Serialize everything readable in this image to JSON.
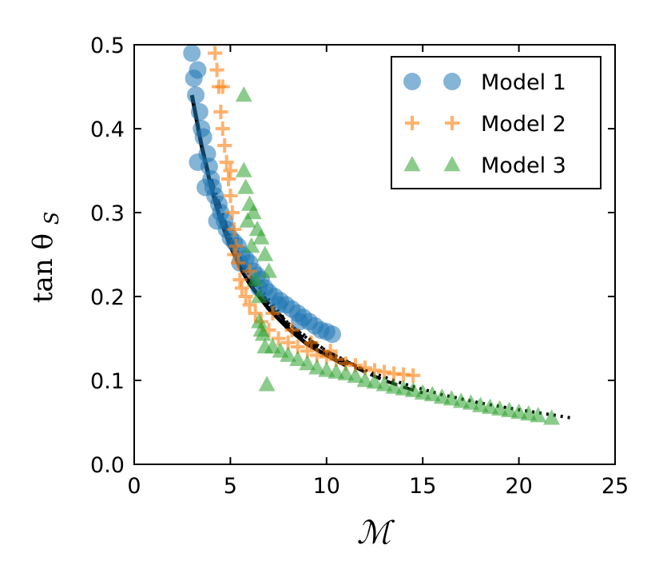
{
  "chart_data": {
    "type": "scatter",
    "title": "",
    "xlabel": "ℳ",
    "ylabel": "tan θ",
    "ylabel_subscript": "S",
    "xlim": [
      0,
      25
    ],
    "ylim": [
      0.0,
      0.5
    ],
    "x_ticks": [
      "0",
      "5",
      "10",
      "15",
      "20",
      "25"
    ],
    "y_ticks": [
      "0.0",
      "0.1",
      "0.2",
      "0.3",
      "0.4",
      "0.5"
    ],
    "x_tick_values": [
      0,
      5,
      10,
      15,
      20,
      25
    ],
    "y_tick_values": [
      0.0,
      0.1,
      0.2,
      0.3,
      0.4,
      0.5
    ],
    "grid": false,
    "legend_position": "top-right",
    "series": [
      {
        "name": "Model 1",
        "marker": "circle",
        "color": "#1f77b4",
        "points": [
          [
            3.0,
            0.49
          ],
          [
            3.1,
            0.46
          ],
          [
            3.2,
            0.44
          ],
          [
            3.3,
            0.47
          ],
          [
            3.4,
            0.42
          ],
          [
            3.5,
            0.4
          ],
          [
            3.6,
            0.39
          ],
          [
            3.8,
            0.37
          ],
          [
            3.9,
            0.355
          ],
          [
            4.0,
            0.34
          ],
          [
            4.1,
            0.33
          ],
          [
            4.2,
            0.32
          ],
          [
            4.4,
            0.31
          ],
          [
            4.5,
            0.3
          ],
          [
            4.7,
            0.29
          ],
          [
            4.8,
            0.28
          ],
          [
            5.0,
            0.27
          ],
          [
            5.2,
            0.265
          ],
          [
            5.4,
            0.26
          ],
          [
            5.6,
            0.25
          ],
          [
            5.8,
            0.245
          ],
          [
            6.0,
            0.24
          ],
          [
            6.2,
            0.23
          ],
          [
            6.4,
            0.225
          ],
          [
            6.6,
            0.22
          ],
          [
            6.8,
            0.21
          ],
          [
            7.0,
            0.205
          ],
          [
            7.3,
            0.2
          ],
          [
            7.6,
            0.195
          ],
          [
            7.9,
            0.19
          ],
          [
            8.2,
            0.185
          ],
          [
            8.5,
            0.18
          ],
          [
            8.8,
            0.175
          ],
          [
            9.1,
            0.17
          ],
          [
            9.4,
            0.165
          ],
          [
            9.7,
            0.16
          ],
          [
            10.0,
            0.158
          ],
          [
            10.3,
            0.155
          ],
          [
            3.3,
            0.36
          ],
          [
            3.7,
            0.33
          ],
          [
            4.3,
            0.29
          ],
          [
            5.5,
            0.24
          ],
          [
            6.5,
            0.21
          ],
          [
            7.5,
            0.19
          ],
          [
            8.6,
            0.17
          ]
        ]
      },
      {
        "name": "Model 2",
        "marker": "plus",
        "color": "#ff7f0e",
        "points": [
          [
            4.2,
            0.49
          ],
          [
            4.3,
            0.47
          ],
          [
            4.4,
            0.45
          ],
          [
            4.5,
            0.42
          ],
          [
            4.6,
            0.4
          ],
          [
            4.7,
            0.38
          ],
          [
            4.8,
            0.36
          ],
          [
            4.9,
            0.34
          ],
          [
            5.0,
            0.32
          ],
          [
            5.1,
            0.3
          ],
          [
            5.2,
            0.28
          ],
          [
            5.3,
            0.26
          ],
          [
            5.4,
            0.24
          ],
          [
            5.5,
            0.22
          ],
          [
            5.6,
            0.21
          ],
          [
            5.8,
            0.2
          ],
          [
            6.0,
            0.19
          ],
          [
            6.3,
            0.18
          ],
          [
            6.6,
            0.17
          ],
          [
            7.0,
            0.16
          ],
          [
            7.5,
            0.15
          ],
          [
            8.0,
            0.145
          ],
          [
            8.5,
            0.14
          ],
          [
            9.0,
            0.135
          ],
          [
            9.5,
            0.13
          ],
          [
            10.0,
            0.128
          ],
          [
            10.5,
            0.125
          ],
          [
            11.0,
            0.12
          ],
          [
            11.5,
            0.118
          ],
          [
            12.0,
            0.115
          ],
          [
            12.5,
            0.112
          ],
          [
            13.0,
            0.11
          ],
          [
            13.5,
            0.108
          ],
          [
            14.0,
            0.107
          ],
          [
            14.5,
            0.106
          ],
          [
            4.6,
            0.45
          ],
          [
            5.0,
            0.35
          ],
          [
            5.2,
            0.25
          ],
          [
            6.0,
            0.23
          ],
          [
            7.2,
            0.18
          ],
          [
            8.2,
            0.16
          ],
          [
            9.2,
            0.145
          ],
          [
            10.2,
            0.135
          ]
        ]
      },
      {
        "name": "Model 3",
        "marker": "triangle",
        "color": "#2ca02c",
        "points": [
          [
            5.7,
            0.44
          ],
          [
            5.7,
            0.35
          ],
          [
            5.8,
            0.33
          ],
          [
            6.0,
            0.31
          ],
          [
            6.2,
            0.3
          ],
          [
            6.4,
            0.28
          ],
          [
            6.6,
            0.27
          ],
          [
            6.8,
            0.25
          ],
          [
            7.0,
            0.23
          ],
          [
            6.9,
            0.095
          ],
          [
            6.8,
            0.14
          ],
          [
            6.5,
            0.17
          ],
          [
            6.6,
            0.16
          ],
          [
            6.7,
            0.155
          ],
          [
            7.2,
            0.14
          ],
          [
            7.6,
            0.135
          ],
          [
            8.0,
            0.13
          ],
          [
            8.5,
            0.125
          ],
          [
            9.0,
            0.12
          ],
          [
            9.5,
            0.115
          ],
          [
            10.0,
            0.112
          ],
          [
            10.5,
            0.11
          ],
          [
            11.0,
            0.108
          ],
          [
            11.5,
            0.105
          ],
          [
            12.0,
            0.1
          ],
          [
            12.5,
            0.098
          ],
          [
            13.0,
            0.095
          ],
          [
            13.5,
            0.092
          ],
          [
            14.0,
            0.09
          ],
          [
            14.5,
            0.088
          ],
          [
            15.0,
            0.085
          ],
          [
            15.5,
            0.083
          ],
          [
            16.0,
            0.08
          ],
          [
            16.5,
            0.078
          ],
          [
            17.0,
            0.075
          ],
          [
            17.5,
            0.073
          ],
          [
            18.0,
            0.07
          ],
          [
            18.5,
            0.068
          ],
          [
            19.0,
            0.066
          ],
          [
            19.5,
            0.064
          ],
          [
            20.0,
            0.062
          ],
          [
            20.5,
            0.06
          ],
          [
            21.0,
            0.058
          ],
          [
            21.7,
            0.055
          ],
          [
            6.3,
            0.22
          ],
          [
            6.5,
            0.2
          ],
          [
            5.9,
            0.29
          ],
          [
            6.1,
            0.26
          ]
        ]
      }
    ],
    "fit_lines": [
      {
        "style": "solid",
        "color": "#000000",
        "points": [
          [
            3.0,
            0.44
          ],
          [
            3.5,
            0.38
          ],
          [
            4.0,
            0.33
          ],
          [
            4.5,
            0.29
          ],
          [
            5.0,
            0.26
          ],
          [
            5.5,
            0.235
          ],
          [
            6.0,
            0.215
          ],
          [
            7.0,
            0.185
          ],
          [
            8.0,
            0.162
          ],
          [
            9.0,
            0.143
          ],
          [
            10.0,
            0.13
          ],
          [
            11.0,
            0.118
          ]
        ]
      },
      {
        "style": "dashed",
        "color": "#000000",
        "points": [
          [
            3.3,
            0.4
          ],
          [
            4.0,
            0.335
          ],
          [
            5.0,
            0.265
          ],
          [
            6.0,
            0.22
          ],
          [
            7.0,
            0.19
          ],
          [
            8.0,
            0.165
          ],
          [
            9.0,
            0.147
          ],
          [
            10.0,
            0.133
          ],
          [
            11.0,
            0.121
          ],
          [
            12.0,
            0.11
          ],
          [
            13.0,
            0.1
          ],
          [
            14.0,
            0.092
          ],
          [
            15.0,
            0.085
          ]
        ]
      },
      {
        "style": "dashdot",
        "color": "#000000",
        "points": [
          [
            4.0,
            0.34
          ],
          [
            5.0,
            0.27
          ],
          [
            6.0,
            0.225
          ],
          [
            7.0,
            0.192
          ],
          [
            8.0,
            0.168
          ],
          [
            9.0,
            0.15
          ],
          [
            10.0,
            0.135
          ],
          [
            11.0,
            0.123
          ],
          [
            12.0,
            0.112
          ]
        ]
      },
      {
        "style": "dotted",
        "color": "#000000",
        "points": [
          [
            5.0,
            0.27
          ],
          [
            6.0,
            0.225
          ],
          [
            8.0,
            0.168
          ],
          [
            10.0,
            0.135
          ],
          [
            12.0,
            0.112
          ],
          [
            14.0,
            0.096
          ],
          [
            16.0,
            0.083
          ],
          [
            18.0,
            0.073
          ],
          [
            20.0,
            0.065
          ],
          [
            22.0,
            0.058
          ],
          [
            22.8,
            0.055
          ]
        ]
      }
    ]
  }
}
